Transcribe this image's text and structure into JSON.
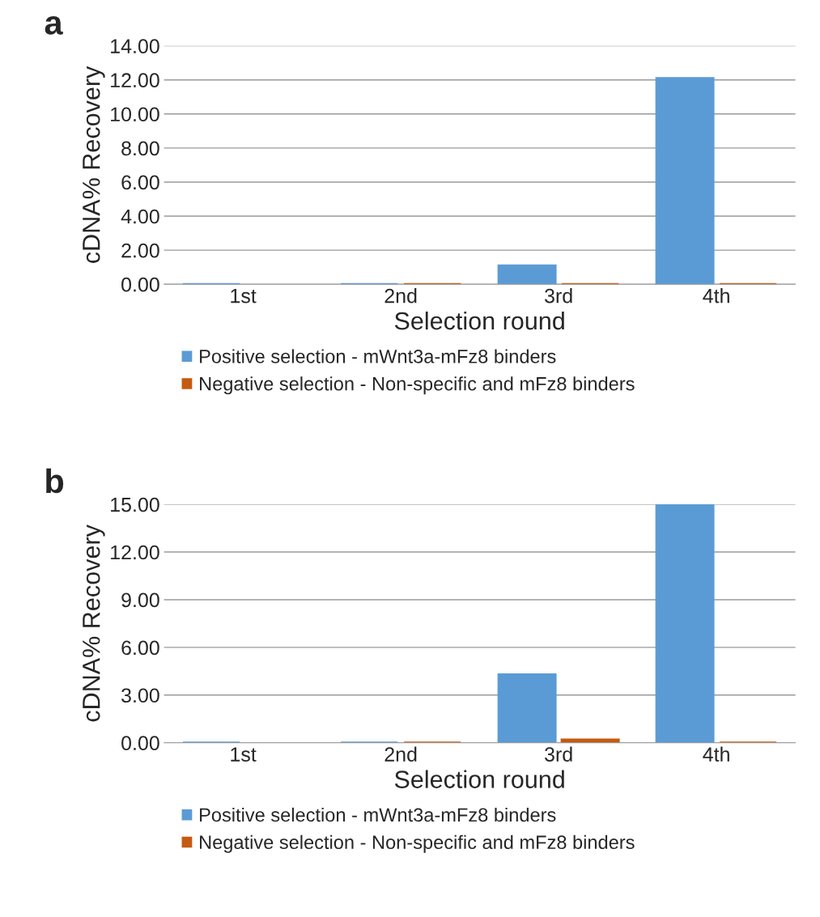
{
  "chart_data": [
    {
      "type": "bar",
      "title": "a",
      "xlabel": "Selection round",
      "ylabel": "cDNA% Recovery",
      "categories": [
        "1st",
        "2nd",
        "3rd",
        "4th"
      ],
      "series": [
        {
          "name": "Positive selection - mWnt3a-mFz8 binders",
          "color": "#5b9bd5",
          "values": [
            0,
            0,
            1.1,
            12.1
          ]
        },
        {
          "name": "Negative selection - Non-specific and mFz8 binders",
          "color": "#c55a11",
          "values": [
            null,
            0,
            0,
            0
          ]
        }
      ],
      "ylim": [
        0,
        14
      ],
      "yticks": [
        {
          "value": 0,
          "label": "0.00"
        },
        {
          "value": 2,
          "label": "2.00"
        },
        {
          "value": 4,
          "label": "4.00"
        },
        {
          "value": 6,
          "label": "6.00"
        },
        {
          "value": 8,
          "label": "8.00"
        },
        {
          "value": 10,
          "label": "10.00"
        },
        {
          "value": 12,
          "label": "12.00"
        },
        {
          "value": 14,
          "label": "14.00"
        }
      ],
      "grid": "y",
      "legend": "bottom"
    },
    {
      "type": "bar",
      "title": "b",
      "xlabel": "Selection round",
      "ylabel": "cDNA% Recovery",
      "categories": [
        "1st",
        "2nd",
        "3rd",
        "4th"
      ],
      "series": [
        {
          "name": "Positive selection - mWnt3a-mFz8 binders",
          "color": "#5b9bd5",
          "values": [
            0,
            0,
            4.3,
            15.0
          ]
        },
        {
          "name": "Negative selection - Non-specific and mFz8 binders",
          "color": "#c55a11",
          "values": [
            null,
            0,
            0.2,
            0
          ]
        }
      ],
      "ylim": [
        0,
        15
      ],
      "yticks": [
        {
          "value": 0,
          "label": "0.00"
        },
        {
          "value": 3,
          "label": "3.00"
        },
        {
          "value": 6,
          "label": "6.00"
        },
        {
          "value": 9,
          "label": "9.00"
        },
        {
          "value": 12,
          "label": "12.00"
        },
        {
          "value": 15,
          "label": "15.00"
        }
      ],
      "grid": "y",
      "legend": "bottom"
    }
  ]
}
